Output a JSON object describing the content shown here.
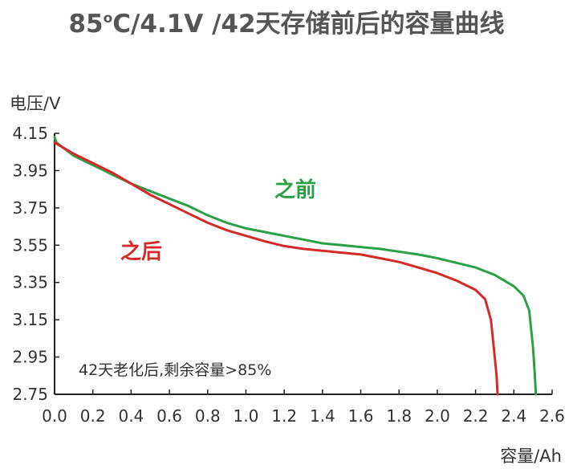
{
  "chart_data": {
    "type": "line",
    "title_prefix": "85",
    "title_degree": "o",
    "title_rest": "C/4.1V /42天存储前后的容量曲线",
    "xlabel": "容量/Ah",
    "ylabel": "电压/V",
    "xlim": [
      0,
      2.6
    ],
    "ylim": [
      2.75,
      4.15
    ],
    "x_ticks": [
      "0.0",
      "0.2",
      "0.4",
      "0.6",
      "0.8",
      "1.0",
      "1.2",
      "1.4",
      "1.6",
      "1.8",
      "2.0",
      "2.2",
      "2.4",
      "2.6"
    ],
    "y_ticks": [
      "4.15",
      "3.95",
      "3.75",
      "3.55",
      "3.35",
      "3.15",
      "2.95",
      "2.75"
    ],
    "grid": false,
    "annotation": "42天老化后,剩余容量>85%",
    "series": [
      {
        "name": "之前",
        "color": "#2ca048",
        "points": [
          [
            0.0,
            4.13
          ],
          [
            0.01,
            4.1
          ],
          [
            0.1,
            4.03
          ],
          [
            0.2,
            3.98
          ],
          [
            0.3,
            3.93
          ],
          [
            0.4,
            3.88
          ],
          [
            0.5,
            3.84
          ],
          [
            0.6,
            3.8
          ],
          [
            0.7,
            3.76
          ],
          [
            0.8,
            3.71
          ],
          [
            0.9,
            3.67
          ],
          [
            1.0,
            3.64
          ],
          [
            1.1,
            3.62
          ],
          [
            1.2,
            3.6
          ],
          [
            1.3,
            3.58
          ],
          [
            1.4,
            3.56
          ],
          [
            1.5,
            3.55
          ],
          [
            1.6,
            3.54
          ],
          [
            1.7,
            3.53
          ],
          [
            1.8,
            3.515
          ],
          [
            1.9,
            3.5
          ],
          [
            2.0,
            3.48
          ],
          [
            2.1,
            3.455
          ],
          [
            2.2,
            3.43
          ],
          [
            2.3,
            3.39
          ],
          [
            2.35,
            3.36
          ],
          [
            2.4,
            3.33
          ],
          [
            2.45,
            3.28
          ],
          [
            2.48,
            3.2
          ],
          [
            2.5,
            3.0
          ],
          [
            2.51,
            2.85
          ],
          [
            2.515,
            2.75
          ]
        ]
      },
      {
        "name": "之后",
        "color": "#d42a2a",
        "points": [
          [
            0.0,
            4.1
          ],
          [
            0.1,
            4.04
          ],
          [
            0.2,
            3.99
          ],
          [
            0.3,
            3.94
          ],
          [
            0.4,
            3.88
          ],
          [
            0.5,
            3.82
          ],
          [
            0.6,
            3.77
          ],
          [
            0.7,
            3.72
          ],
          [
            0.8,
            3.67
          ],
          [
            0.9,
            3.63
          ],
          [
            1.0,
            3.6
          ],
          [
            1.1,
            3.57
          ],
          [
            1.2,
            3.545
          ],
          [
            1.3,
            3.53
          ],
          [
            1.4,
            3.52
          ],
          [
            1.5,
            3.51
          ],
          [
            1.6,
            3.5
          ],
          [
            1.7,
            3.48
          ],
          [
            1.8,
            3.46
          ],
          [
            1.9,
            3.43
          ],
          [
            2.0,
            3.4
          ],
          [
            2.1,
            3.36
          ],
          [
            2.2,
            3.31
          ],
          [
            2.25,
            3.26
          ],
          [
            2.28,
            3.15
          ],
          [
            2.3,
            2.95
          ],
          [
            2.31,
            2.85
          ],
          [
            2.315,
            2.75
          ]
        ]
      }
    ]
  }
}
